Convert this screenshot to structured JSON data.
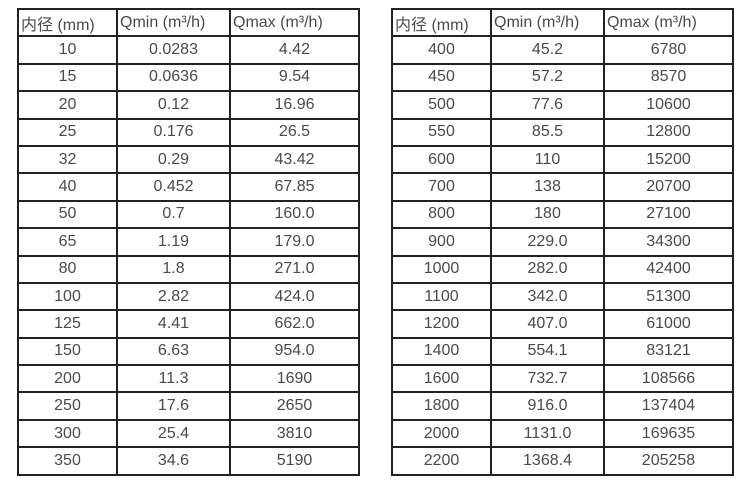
{
  "colors": {
    "background": "#ffffff",
    "border": "#222222",
    "text": "#4a4a4a"
  },
  "tables": [
    {
      "name": "flow-spec-small-diameters",
      "headers": [
        "内径 (mm)",
        "Qmin (m³/h)",
        "Qmax (m³/h)"
      ],
      "rows": [
        [
          "10",
          "0.0283",
          "4.42"
        ],
        [
          "15",
          "0.0636",
          "9.54"
        ],
        [
          "20",
          "0.12",
          "16.96"
        ],
        [
          "25",
          "0.176",
          "26.5"
        ],
        [
          "32",
          "0.29",
          "43.42"
        ],
        [
          "40",
          "0.452",
          "67.85"
        ],
        [
          "50",
          "0.7",
          "160.0"
        ],
        [
          "65",
          "1.19",
          "179.0"
        ],
        [
          "80",
          "1.8",
          "271.0"
        ],
        [
          "100",
          "2.82",
          "424.0"
        ],
        [
          "125",
          "4.41",
          "662.0"
        ],
        [
          "150",
          "6.63",
          "954.0"
        ],
        [
          "200",
          "11.3",
          "1690"
        ],
        [
          "250",
          "17.6",
          "2650"
        ],
        [
          "300",
          "25.4",
          "3810"
        ],
        [
          "350",
          "34.6",
          "5190"
        ]
      ]
    },
    {
      "name": "flow-spec-large-diameters",
      "headers": [
        "内径 (mm)",
        "Qmin (m³/h)",
        "Qmax (m³/h)"
      ],
      "rows": [
        [
          "400",
          "45.2",
          "6780"
        ],
        [
          "450",
          "57.2",
          "8570"
        ],
        [
          "500",
          "77.6",
          "10600"
        ],
        [
          "550",
          "85.5",
          "12800"
        ],
        [
          "600",
          "110",
          "15200"
        ],
        [
          "700",
          "138",
          "20700"
        ],
        [
          "800",
          "180",
          "27100"
        ],
        [
          "900",
          "229.0",
          "34300"
        ],
        [
          "1000",
          "282.0",
          "42400"
        ],
        [
          "1100",
          "342.0",
          "51300"
        ],
        [
          "1200",
          "407.0",
          "61000"
        ],
        [
          "1400",
          "554.1",
          "83121"
        ],
        [
          "1600",
          "732.7",
          "108566"
        ],
        [
          "1800",
          "916.0",
          "137404"
        ],
        [
          "2000",
          "1131.0",
          "169635"
        ],
        [
          "2200",
          "1368.4",
          "205258"
        ]
      ]
    }
  ]
}
